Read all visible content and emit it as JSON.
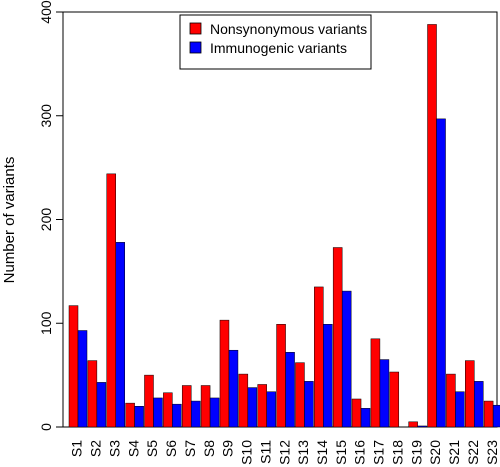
{
  "chart_data": {
    "type": "bar",
    "title": "",
    "xlabel": "",
    "ylabel": "Number of variants",
    "ylim": [
      0,
      400
    ],
    "yticks": [
      0,
      100,
      200,
      300,
      400
    ],
    "grid": false,
    "legend_position": "top-center",
    "categories": [
      "S1",
      "S2",
      "S3",
      "S4",
      "S5",
      "S6",
      "S7",
      "S8",
      "S9",
      "S10",
      "S11",
      "S12",
      "S13",
      "S14",
      "S15",
      "S16",
      "S17",
      "S18",
      "S19",
      "S20",
      "S21",
      "S22",
      "S23"
    ],
    "series": [
      {
        "name": "Nonsynonymous variants",
        "color": "#ff0000",
        "values": [
          117,
          64,
          244,
          23,
          50,
          33,
          40,
          40,
          103,
          51,
          41,
          99,
          62,
          135,
          173,
          27,
          85,
          53,
          5,
          388,
          51,
          64,
          25
        ]
      },
      {
        "name": "Immunogenic variants",
        "color": "#0000ff",
        "values": [
          93,
          43,
          178,
          20,
          28,
          22,
          25,
          28,
          74,
          38,
          34,
          72,
          44,
          99,
          131,
          18,
          65,
          0,
          1,
          297,
          34,
          44,
          21
        ]
      }
    ]
  }
}
